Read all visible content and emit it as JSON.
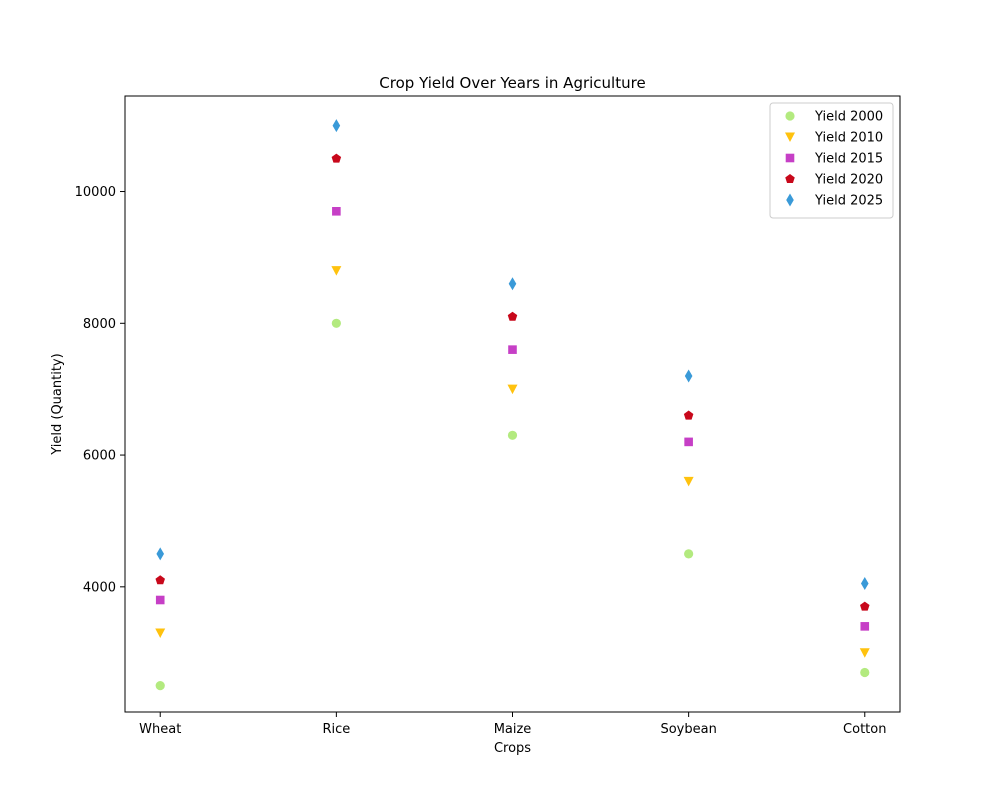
{
  "chart_data": {
    "type": "scatter",
    "title": "Crop Yield Over Years in Agriculture",
    "xlabel": "Crops",
    "ylabel": "Yield (Quantity)",
    "categories": [
      "Wheat",
      "Rice",
      "Maize",
      "Soybean",
      "Cotton"
    ],
    "ylim": [
      2100,
      11450
    ],
    "yticks": [
      4000,
      6000,
      8000,
      10000
    ],
    "grid": false,
    "legend_position": "top-right",
    "series": [
      {
        "name": "Yield 2000",
        "marker": "circle",
        "color": "#b3ea7f",
        "values": [
          2500,
          8000,
          6300,
          4500,
          2700
        ]
      },
      {
        "name": "Yield 2010",
        "marker": "triangle-down",
        "color": "#ffc20e",
        "values": [
          3300,
          8800,
          7000,
          5600,
          3000
        ]
      },
      {
        "name": "Yield 2015",
        "marker": "square",
        "color": "#c63fc6",
        "values": [
          3800,
          9700,
          7600,
          6200,
          3400
        ]
      },
      {
        "name": "Yield 2020",
        "marker": "pentagon",
        "color": "#c8081b",
        "values": [
          4100,
          10500,
          8100,
          6600,
          3700
        ]
      },
      {
        "name": "Yield 2025",
        "marker": "thin-diamond",
        "color": "#3a9ad8",
        "values": [
          4500,
          11000,
          8600,
          7200,
          4050
        ]
      }
    ]
  }
}
